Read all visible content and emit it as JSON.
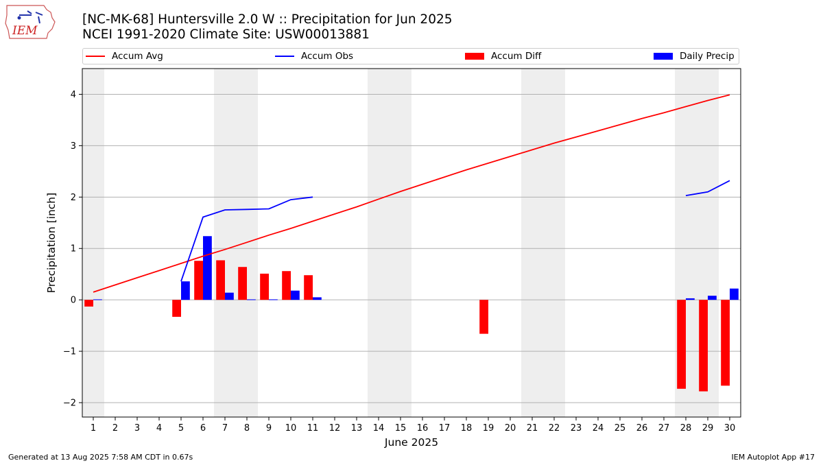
{
  "header": {
    "title_line1": "[NC-MK-68] Huntersville 2.0 W :: Precipitation for Jun 2025",
    "title_line2": "NCEI 1991-2020 Climate Site: USW00013881"
  },
  "logo": {
    "text": "IEM",
    "icon": "iem-iowa-logo"
  },
  "legend": {
    "placement": "top",
    "items": [
      {
        "label": "Accum Avg",
        "kind": "line",
        "color": "#ff0000"
      },
      {
        "label": "Accum Obs",
        "kind": "line",
        "color": "#0000ff"
      },
      {
        "label": "Accum Diff",
        "kind": "bar",
        "color": "#ff0000"
      },
      {
        "label": "Daily Precip",
        "kind": "bar",
        "color": "#0000ff"
      }
    ]
  },
  "footer": {
    "left": "Generated at 13 Aug 2025 7:58 AM CDT in 0.67s",
    "right": "IEM Autoplot App #17"
  },
  "chart_data": {
    "type": "bar",
    "title": "[NC-MK-68] Huntersville 2.0 W :: Precipitation for Jun 2025",
    "subtitle": "NCEI 1991-2020 Climate Site: USW00013881",
    "xlabel": "June 2025",
    "ylabel": "Precipitation [inch]",
    "xlim": [
      0.5,
      30.5
    ],
    "ylim": [
      -2.28,
      4.5
    ],
    "grid": "horizontal",
    "x": [
      1,
      2,
      3,
      4,
      5,
      6,
      7,
      8,
      9,
      10,
      11,
      12,
      13,
      14,
      15,
      16,
      17,
      18,
      19,
      20,
      21,
      22,
      23,
      24,
      25,
      26,
      27,
      28,
      29,
      30
    ],
    "yticks": [
      -2,
      -1,
      0,
      1,
      2,
      3,
      4
    ],
    "weekend_shading": [
      [
        0.5,
        1.5
      ],
      [
        6.5,
        8.5
      ],
      [
        13.5,
        15.5
      ],
      [
        20.5,
        22.5
      ],
      [
        27.5,
        29.5
      ]
    ],
    "colors": {
      "avg": "#ff0000",
      "obs": "#0000ff",
      "diff": "#ff0000",
      "daily": "#0000ff",
      "shade": "#eeeeee",
      "grid": "#b0b0b0"
    },
    "series": [
      {
        "name": "Accum Avg",
        "type": "line",
        "values": [
          0.15,
          0.29,
          0.43,
          0.57,
          0.71,
          0.85,
          0.98,
          1.12,
          1.26,
          1.39,
          1.53,
          1.67,
          1.81,
          1.96,
          2.11,
          2.25,
          2.39,
          2.53,
          2.66,
          2.79,
          2.92,
          3.05,
          3.17,
          3.29,
          3.41,
          3.53,
          3.64,
          3.76,
          3.88,
          3.99
        ]
      },
      {
        "name": "Accum Obs",
        "type": "line",
        "values": [
          null,
          null,
          null,
          null,
          0.36,
          1.61,
          1.75,
          1.76,
          1.77,
          1.95,
          2.0,
          null,
          null,
          null,
          null,
          null,
          null,
          null,
          null,
          null,
          null,
          null,
          null,
          null,
          null,
          null,
          null,
          2.03,
          2.1,
          2.32
        ]
      },
      {
        "name": "Accum Diff",
        "type": "bar",
        "values": [
          -0.13,
          null,
          null,
          null,
          -0.33,
          0.76,
          0.77,
          0.64,
          0.51,
          0.56,
          0.48,
          null,
          null,
          null,
          null,
          null,
          null,
          null,
          -0.66,
          null,
          null,
          null,
          null,
          null,
          null,
          null,
          null,
          -1.73,
          -1.78,
          -1.67
        ]
      },
      {
        "name": "Daily Precip",
        "type": "bar",
        "values": [
          0.01,
          null,
          null,
          null,
          0.36,
          1.24,
          0.14,
          0.01,
          0.01,
          0.18,
          0.05,
          null,
          null,
          null,
          null,
          null,
          null,
          null,
          null,
          null,
          null,
          null,
          null,
          null,
          null,
          null,
          null,
          0.03,
          0.08,
          0.22
        ]
      }
    ]
  }
}
